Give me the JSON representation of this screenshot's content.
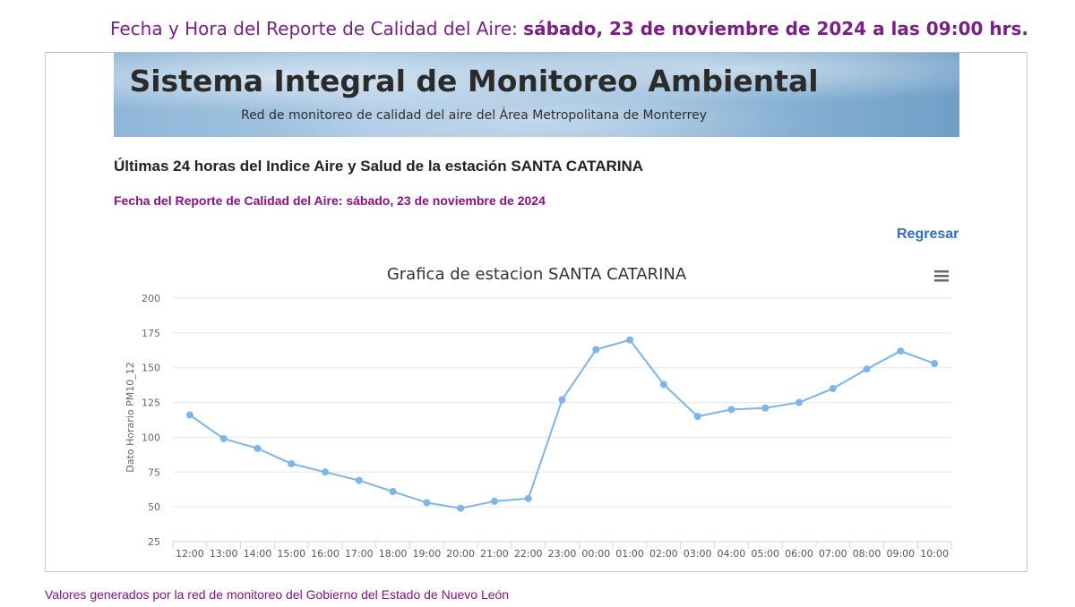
{
  "header": {
    "report_label": "Fecha y Hora del Reporte de Calidad del Aire:",
    "report_datetime": "sábado, 23 de noviembre de 2024 a las 09:00 hrs."
  },
  "banner": {
    "title": "Sistema Integral de Monitoreo Ambiental",
    "subtitle": "Red de monitoreo de calidad del aire del Área Metropolitana de Monterrey"
  },
  "page": {
    "station_title": "Últimas 24 horas del Indice Aire y Salud de la estación SANTA CATARINA",
    "report_date": "Fecha del Reporte de Calidad del Aire: sábado, 23 de noviembre de 2024",
    "back_link": "Regresar"
  },
  "chart_data": {
    "type": "line",
    "title": "Grafica de estacion SANTA CATARINA",
    "xlabel": "",
    "ylabel": "Dato Horario PM10_12",
    "categories": [
      "12:00",
      "13:00",
      "14:00",
      "15:00",
      "16:00",
      "17:00",
      "18:00",
      "19:00",
      "20:00",
      "21:00",
      "22:00",
      "23:00",
      "00:00",
      "01:00",
      "02:00",
      "03:00",
      "04:00",
      "05:00",
      "06:00",
      "07:00",
      "08:00",
      "09:00",
      "10:00"
    ],
    "series": [
      {
        "values": [
          116,
          99,
          92,
          81,
          75,
          69,
          61,
          53,
          49,
          54,
          56,
          127,
          163,
          170,
          138,
          115,
          120,
          121,
          125,
          135,
          149,
          162,
          153
        ],
        "color": "#7cb5ec"
      }
    ],
    "ylim": [
      25,
      200
    ],
    "yticks": [
      25,
      50,
      75,
      100,
      125,
      150,
      175,
      200
    ],
    "grid": true,
    "legend": "none",
    "menu_icon": "hamburger-menu-icon"
  },
  "footer": {
    "text": "Valores generados por la red de monitoreo del Gobierno del Estado de Nuevo León"
  }
}
